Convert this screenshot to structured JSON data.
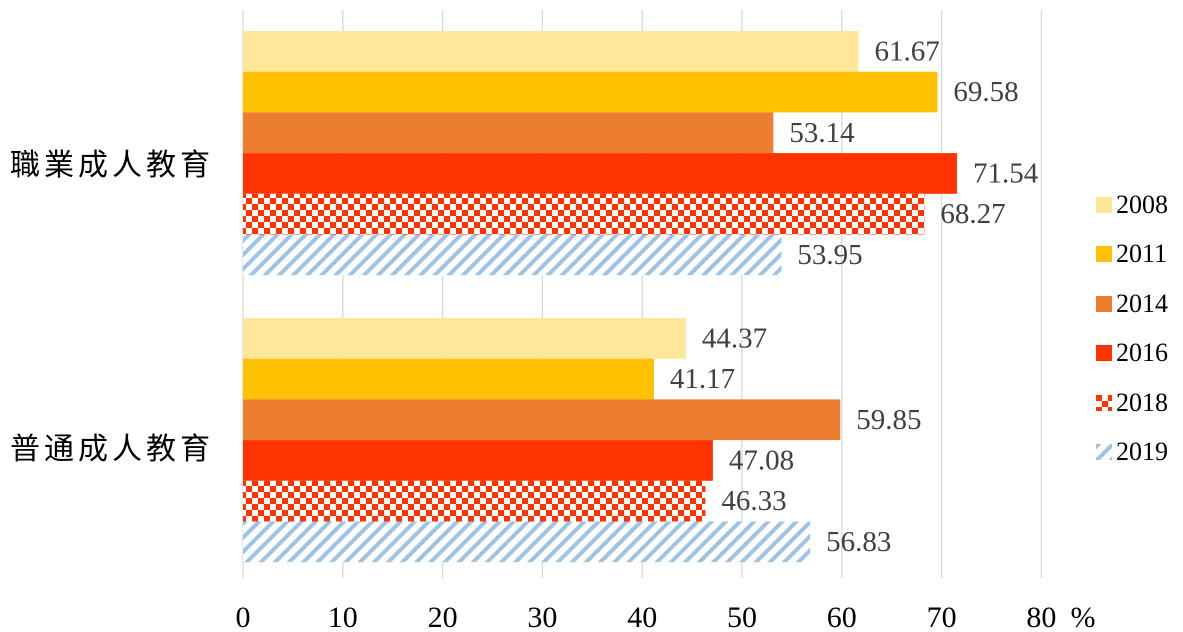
{
  "chart_data": {
    "type": "bar",
    "orientation": "horizontal",
    "categories": [
      "職業成人教育",
      "普通成人教育"
    ],
    "series": [
      {
        "name": "2008",
        "values": [
          61.67,
          44.37
        ],
        "color": "#FFE699",
        "pattern": "solid"
      },
      {
        "name": "2011",
        "values": [
          69.58,
          41.17
        ],
        "color": "#FFC000",
        "pattern": "solid"
      },
      {
        "name": "2014",
        "values": [
          53.14,
          59.85
        ],
        "color": "#ED7D31",
        "pattern": "solid"
      },
      {
        "name": "2016",
        "values": [
          71.54,
          47.08
        ],
        "color": "#FF3300",
        "pattern": "solid"
      },
      {
        "name": "2018",
        "values": [
          68.27,
          46.33
        ],
        "color": "#FF3300",
        "pattern": "checker"
      },
      {
        "name": "2019",
        "values": [
          53.95,
          56.83
        ],
        "color": "#9DC3E6",
        "pattern": "diagonal"
      }
    ],
    "data_labels": [
      [
        "61.67",
        "44.37"
      ],
      [
        "69.58",
        "41.17"
      ],
      [
        "53.14",
        "59.85"
      ],
      [
        "71.54",
        "47.08"
      ],
      [
        "68.27",
        "46.33"
      ],
      [
        "53.95",
        "56.83"
      ]
    ],
    "xlim": [
      0,
      80
    ],
    "xticks": [
      "0",
      "10",
      "20",
      "30",
      "40",
      "50",
      "60",
      "70",
      "80"
    ],
    "xunit": "%",
    "grid": "vertical",
    "legend_position": "right"
  }
}
